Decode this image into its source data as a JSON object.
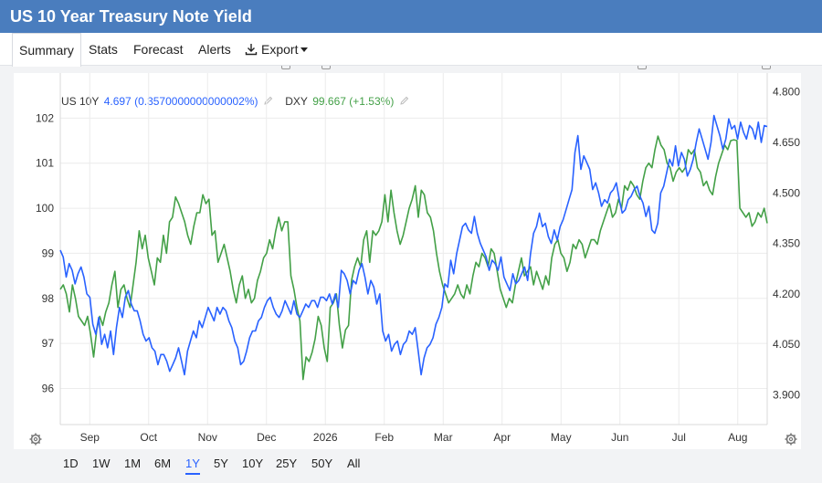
{
  "window": {
    "title": "US 10 Year Treasury Note Yield"
  },
  "tabs": [
    "Summary",
    "Stats",
    "Forecast",
    "Alerts",
    "Export"
  ],
  "active_tab": "Summary",
  "legend": {
    "s1_name": "US 10Y",
    "s1_value": "4.697 (0.3570000000000002%)",
    "s2_name": "DXY",
    "s2_value": "99.667 (+1.53%)"
  },
  "ranges": [
    "1D",
    "1W",
    "1M",
    "6M",
    "1Y",
    "5Y",
    "10Y",
    "25Y",
    "50Y",
    "All"
  ],
  "active_range": "1Y",
  "colors": {
    "header": "#4a7dbe",
    "us10y": "#2962ff",
    "dxy": "#43a047",
    "active": "#2962ff"
  },
  "chart_data": {
    "type": "line",
    "x_ticks": [
      "Sep",
      "Oct",
      "Nov",
      "Dec",
      "2026",
      "Feb",
      "Mar",
      "Apr",
      "May",
      "Jun",
      "Jul",
      "Aug"
    ],
    "left_axis": {
      "ticks": [
        "102",
        "101",
        "100",
        "99",
        "98",
        "97",
        "96"
      ],
      "range": [
        95.2,
        103
      ]
    },
    "right_axis": {
      "ticks": [
        "4.800",
        "4.650",
        "4.500",
        "4.350",
        "4.200",
        "4.050",
        "3.900"
      ],
      "range": [
        3.812,
        4.856
      ]
    },
    "series": [
      {
        "name": "US 10Y",
        "axis": "right",
        "color": "#2962ff",
        "values": [
          4.33,
          4.31,
          4.25,
          4.29,
          4.27,
          4.23,
          4.26,
          4.28,
          4.25,
          4.2,
          4.19,
          4.11,
          4.08,
          4.13,
          4.05,
          4.08,
          4.04,
          4.09,
          4.02,
          4.1,
          4.16,
          4.13,
          4.19,
          4.21,
          4.17,
          4.15,
          4.15,
          4.12,
          4.08,
          4.06,
          4.07,
          4.04,
          4.03,
          3.99,
          4.02,
          4.02,
          4.0,
          3.97,
          3.99,
          4.01,
          4.04,
          4.0,
          3.96,
          4.03,
          4.06,
          4.09,
          4.07,
          4.12,
          4.1,
          4.13,
          4.16,
          4.14,
          4.12,
          4.16,
          4.14,
          4.16,
          4.15,
          4.12,
          4.1,
          4.06,
          4.04,
          3.99,
          4.0,
          4.03,
          4.07,
          4.09,
          4.09,
          4.12,
          4.13,
          4.16,
          4.18,
          4.19,
          4.16,
          4.14,
          4.13,
          4.15,
          4.18,
          4.16,
          4.14,
          4.18,
          4.14,
          4.13,
          4.15,
          4.17,
          4.16,
          4.18,
          4.18,
          4.16,
          4.19,
          4.19,
          4.18,
          4.2,
          4.17,
          4.2,
          4.16,
          4.27,
          4.26,
          4.24,
          4.2,
          4.24,
          4.23,
          4.27,
          4.29,
          4.25,
          4.2,
          4.24,
          4.22,
          4.17,
          4.2,
          4.09,
          4.06,
          4.08,
          4.03,
          4.05,
          4.06,
          4.02,
          4.05,
          4.06,
          4.09,
          4.08,
          4.1,
          4.03,
          3.96,
          4.01,
          4.04,
          4.05,
          4.07,
          4.11,
          4.13,
          4.16,
          4.23,
          4.22,
          4.3,
          4.26,
          4.32,
          4.36,
          4.4,
          4.41,
          4.39,
          4.38,
          4.43,
          4.38,
          4.35,
          4.33,
          4.31,
          4.27,
          4.3,
          4.29,
          4.27,
          4.31,
          4.25,
          4.23,
          4.21,
          4.26,
          4.23,
          4.24,
          4.26,
          4.28,
          4.24,
          4.32,
          4.38,
          4.4,
          4.44,
          4.4,
          4.41,
          4.37,
          4.35,
          4.39,
          4.36,
          4.4,
          4.42,
          4.45,
          4.48,
          4.51,
          4.62,
          4.67,
          4.57,
          4.61,
          4.59,
          4.57,
          4.51,
          4.53,
          4.5,
          4.46,
          4.48,
          4.47,
          4.5,
          4.51,
          4.53,
          4.48,
          4.44,
          4.45,
          4.48,
          4.49,
          4.51,
          4.52,
          4.49,
          4.47,
          4.43,
          4.46,
          4.39,
          4.38,
          4.41,
          4.5,
          4.52,
          4.56,
          4.6,
          4.58,
          4.64,
          4.58,
          4.62,
          4.6,
          4.55,
          4.57,
          4.6,
          4.65,
          4.69,
          4.66,
          4.63,
          4.6,
          4.65,
          4.73,
          4.7,
          4.67,
          4.63,
          4.66,
          4.72,
          4.69,
          4.7,
          4.66,
          4.71,
          4.68,
          4.66,
          4.7,
          4.69,
          4.66,
          4.71,
          4.65,
          4.7,
          4.697
        ]
      },
      {
        "name": "DXY",
        "axis": "left",
        "color": "#43a047",
        "values": [
          98.2,
          98.3,
          98.1,
          97.7,
          98.3,
          98.0,
          97.6,
          97.5,
          97.4,
          97.6,
          97.2,
          96.7,
          97.3,
          97.6,
          97.4,
          97.7,
          97.9,
          98.3,
          98.6,
          97.8,
          98.2,
          98.3,
          98.0,
          97.8,
          98.3,
          98.8,
          99.5,
          99.1,
          99.4,
          98.9,
          98.6,
          98.3,
          98.9,
          98.8,
          99.4,
          99.0,
          99.7,
          99.8,
          100.25,
          100.1,
          99.9,
          99.7,
          99.4,
          99.2,
          99.6,
          99.9,
          99.9,
          100.3,
          100.1,
          100.2,
          99.4,
          99.5,
          98.8,
          99.0,
          99.2,
          98.9,
          98.6,
          98.2,
          97.9,
          98.3,
          98.5,
          98.0,
          98.2,
          97.9,
          98.0,
          98.4,
          98.6,
          98.9,
          99.0,
          99.3,
          99.1,
          99.5,
          99.8,
          99.5,
          99.7,
          99.7,
          98.5,
          98.2,
          97.8,
          97.5,
          96.2,
          96.7,
          96.6,
          96.8,
          97.1,
          97.6,
          97.4,
          96.9,
          96.6,
          97.8,
          97.9,
          98.1,
          97.4,
          96.9,
          97.3,
          97.4,
          98.4,
          98.7,
          98.9,
          98.7,
          99.3,
          99.5,
          98.8,
          99.5,
          99.4,
          99.5,
          99.7,
          100.3,
          99.7,
          100.4,
          99.9,
          99.5,
          99.2,
          99.4,
          99.7,
          100.0,
          100.2,
          100.5,
          99.8,
          100.4,
          100.3,
          99.9,
          99.8,
          99.5,
          99.0,
          98.6,
          98.3,
          98.1,
          97.9,
          98.0,
          98.1,
          98.3,
          98.1,
          98.0,
          98.3,
          98.1,
          98.5,
          98.8,
          98.7,
          99.0,
          98.9,
          98.7,
          99.1,
          99.0,
          98.6,
          98.2,
          98.0,
          97.8,
          98.0,
          97.9,
          98.3,
          98.6,
          98.9,
          98.5,
          98.6,
          98.7,
          98.3,
          98.6,
          98.4,
          98.2,
          98.5,
          98.3,
          98.9,
          99.2,
          99.3,
          99.0,
          98.9,
          98.6,
          98.8,
          99.2,
          99.1,
          99.3,
          99.2,
          98.9,
          99.1,
          99.3,
          99.3,
          99.2,
          99.5,
          99.7,
          99.9,
          100.1,
          99.8,
          99.9,
          100.2,
          100.0,
          100.5,
          100.4,
          100.6,
          100.5,
          100.3,
          100.2,
          100.6,
          100.9,
          101.0,
          100.9,
          101.3,
          101.6,
          101.4,
          101.3,
          101.0,
          100.9,
          100.6,
          100.8,
          100.9,
          100.8,
          100.9,
          101.3,
          101.2,
          101.3,
          100.9,
          100.8,
          100.5,
          100.6,
          100.4,
          100.3,
          100.7,
          101.0,
          101.2,
          101.4,
          101.3,
          101.5,
          101.52,
          101.5,
          100.0,
          99.9,
          99.8,
          99.9,
          99.6,
          99.7,
          99.9,
          99.8,
          100.0,
          99.667
        ]
      }
    ]
  }
}
